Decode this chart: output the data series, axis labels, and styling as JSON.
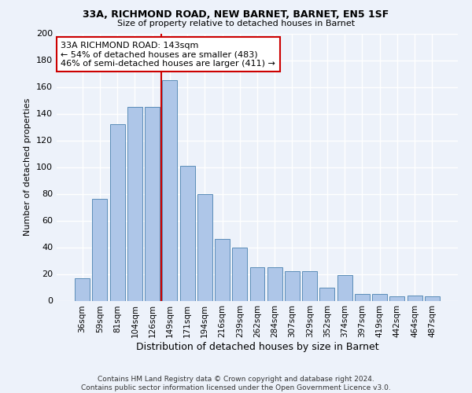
{
  "title1": "33A, RICHMOND ROAD, NEW BARNET, BARNET, EN5 1SF",
  "title2": "Size of property relative to detached houses in Barnet",
  "xlabel": "Distribution of detached houses by size in Barnet",
  "ylabel": "Number of detached properties",
  "categories": [
    "36sqm",
    "59sqm",
    "81sqm",
    "104sqm",
    "126sqm",
    "149sqm",
    "171sqm",
    "194sqm",
    "216sqm",
    "239sqm",
    "262sqm",
    "284sqm",
    "307sqm",
    "329sqm",
    "352sqm",
    "374sqm",
    "397sqm",
    "419sqm",
    "442sqm",
    "464sqm",
    "487sqm"
  ],
  "values": [
    17,
    76,
    132,
    145,
    145,
    165,
    101,
    80,
    46,
    40,
    25,
    25,
    22,
    22,
    10,
    19,
    5,
    5,
    3,
    4,
    3
  ],
  "bar_color": "#aec6e8",
  "bar_edge_color": "#5b8db8",
  "property_line_x": 5.0,
  "property_line_color": "#cc0000",
  "annotation_text": "33A RICHMOND ROAD: 143sqm\n← 54% of detached houses are smaller (483)\n46% of semi-detached houses are larger (411) →",
  "annotation_box_color": "#ffffff",
  "annotation_box_edge_color": "#cc0000",
  "ylim": [
    0,
    200
  ],
  "yticks": [
    0,
    20,
    40,
    60,
    80,
    100,
    120,
    140,
    160,
    180,
    200
  ],
  "footer": "Contains HM Land Registry data © Crown copyright and database right 2024.\nContains public sector information licensed under the Open Government Licence v3.0.",
  "bg_color": "#edf2fa",
  "grid_color": "#ffffff"
}
